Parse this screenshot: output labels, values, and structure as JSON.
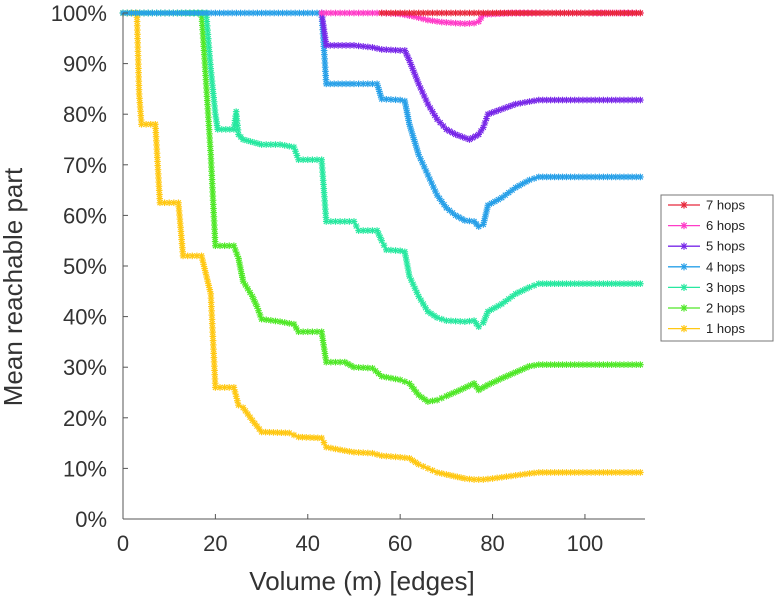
{
  "chart_data": {
    "type": "line",
    "title": "",
    "xlabel": "Volume (m) [edges]",
    "ylabel": "Mean reachable part",
    "xlim": [
      0,
      113
    ],
    "ylim": [
      0,
      100
    ],
    "xticks": [
      0,
      20,
      40,
      60,
      80,
      100
    ],
    "yticks": [
      0,
      10,
      20,
      30,
      40,
      50,
      60,
      70,
      80,
      90,
      100
    ],
    "ytick_labels": [
      "0%",
      "10%",
      "20%",
      "30%",
      "40%",
      "50%",
      "60%",
      "70%",
      "80%",
      "90%",
      "100%"
    ],
    "grid": false,
    "legend": "right",
    "series": [
      {
        "name": "7 hops",
        "color": "#e8283c",
        "points": [
          [
            56,
            100
          ],
          [
            60,
            100
          ],
          [
            64,
            100
          ],
          [
            68,
            100
          ],
          [
            72,
            100
          ],
          [
            76,
            100
          ],
          [
            80,
            100
          ],
          [
            86,
            100
          ],
          [
            92,
            100
          ],
          [
            100,
            100
          ],
          [
            106,
            100
          ],
          [
            112,
            100
          ]
        ]
      },
      {
        "name": "6 hops",
        "color": "#ff3cc8",
        "points": [
          [
            43,
            100
          ],
          [
            48,
            100
          ],
          [
            52,
            100
          ],
          [
            56,
            100
          ],
          [
            60,
            99.8
          ],
          [
            63,
            99.3
          ],
          [
            66,
            98.6
          ],
          [
            69,
            98.2
          ],
          [
            72,
            98
          ],
          [
            74,
            97.9
          ],
          [
            76,
            98
          ],
          [
            77,
            98.3
          ],
          [
            78,
            99.7
          ],
          [
            84,
            100
          ],
          [
            92,
            100
          ],
          [
            100,
            100
          ],
          [
            112,
            100
          ]
        ]
      },
      {
        "name": "5 hops",
        "color": "#7828e8",
        "points": [
          [
            43,
            100
          ],
          [
            44,
            93.6
          ],
          [
            50,
            93.6
          ],
          [
            54,
            93.2
          ],
          [
            56,
            92.8
          ],
          [
            60,
            92.6
          ],
          [
            61,
            92.6
          ],
          [
            62,
            90.6
          ],
          [
            64,
            86
          ],
          [
            66,
            82
          ],
          [
            68,
            79
          ],
          [
            70,
            77
          ],
          [
            72,
            76
          ],
          [
            75,
            75
          ],
          [
            77,
            76
          ],
          [
            78,
            77.4
          ],
          [
            79,
            80
          ],
          [
            82,
            81
          ],
          [
            85,
            82
          ],
          [
            88,
            82.5
          ],
          [
            90,
            82.8
          ],
          [
            96,
            82.8
          ],
          [
            104,
            82.8
          ],
          [
            112,
            82.8
          ]
        ]
      },
      {
        "name": "4 hops",
        "color": "#28a0e8",
        "points": [
          [
            0,
            100
          ],
          [
            10,
            100
          ],
          [
            20,
            100
          ],
          [
            30,
            100
          ],
          [
            40,
            100
          ],
          [
            43,
            100
          ],
          [
            44,
            86
          ],
          [
            50,
            86
          ],
          [
            54,
            86
          ],
          [
            55,
            86
          ],
          [
            56,
            83
          ],
          [
            60,
            82.8
          ],
          [
            61,
            82.6
          ],
          [
            62,
            78
          ],
          [
            64,
            72
          ],
          [
            66,
            68
          ],
          [
            68,
            64
          ],
          [
            70,
            61.5
          ],
          [
            72,
            60
          ],
          [
            74,
            59
          ],
          [
            76,
            58.8
          ],
          [
            77,
            57.8
          ],
          [
            78,
            58.2
          ],
          [
            79,
            62
          ],
          [
            82,
            63.5
          ],
          [
            85,
            65.5
          ],
          [
            88,
            67
          ],
          [
            90,
            67.6
          ],
          [
            96,
            67.6
          ],
          [
            104,
            67.6
          ],
          [
            112,
            67.6
          ]
        ]
      },
      {
        "name": "3 hops",
        "color": "#28e8a0",
        "points": [
          [
            0,
            100
          ],
          [
            10,
            100
          ],
          [
            18,
            100
          ],
          [
            19,
            89
          ],
          [
            20,
            80
          ],
          [
            20.5,
            77
          ],
          [
            24,
            77
          ],
          [
            24.5,
            80.5
          ],
          [
            25,
            76
          ],
          [
            26,
            75
          ],
          [
            30,
            74
          ],
          [
            34,
            74
          ],
          [
            37,
            73.5
          ],
          [
            38,
            71
          ],
          [
            43,
            71
          ],
          [
            44,
            58.8
          ],
          [
            48,
            58.8
          ],
          [
            50,
            58.8
          ],
          [
            51,
            57
          ],
          [
            55,
            57
          ],
          [
            56,
            55
          ],
          [
            57,
            53.2
          ],
          [
            60,
            53
          ],
          [
            61,
            52.8
          ],
          [
            62,
            48
          ],
          [
            64,
            44
          ],
          [
            66,
            41
          ],
          [
            68,
            39.8
          ],
          [
            70,
            39.2
          ],
          [
            74,
            39
          ],
          [
            76,
            39.2
          ],
          [
            77,
            38
          ],
          [
            78,
            38.8
          ],
          [
            79,
            41
          ],
          [
            82,
            42.5
          ],
          [
            85,
            44.5
          ],
          [
            88,
            45.8
          ],
          [
            90,
            46.5
          ],
          [
            96,
            46.5
          ],
          [
            104,
            46.5
          ],
          [
            112,
            46.5
          ]
        ]
      },
      {
        "name": "2 hops",
        "color": "#50e828",
        "points": [
          [
            0,
            100
          ],
          [
            10,
            100
          ],
          [
            17,
            100
          ],
          [
            19,
            72
          ],
          [
            20,
            54
          ],
          [
            24,
            54
          ],
          [
            25,
            51.5
          ],
          [
            26,
            47
          ],
          [
            28,
            44
          ],
          [
            29,
            42
          ],
          [
            30,
            39.5
          ],
          [
            34,
            39
          ],
          [
            37,
            38.5
          ],
          [
            38,
            37
          ],
          [
            43,
            37
          ],
          [
            44,
            31
          ],
          [
            48,
            31
          ],
          [
            50,
            30
          ],
          [
            54,
            29.8
          ],
          [
            56,
            28.2
          ],
          [
            60,
            27.5
          ],
          [
            62,
            26.8
          ],
          [
            64,
            24.5
          ],
          [
            66,
            23.2
          ],
          [
            68,
            23.5
          ],
          [
            70,
            24.3
          ],
          [
            73,
            25.5
          ],
          [
            76,
            26.8
          ],
          [
            77,
            25.5
          ],
          [
            79,
            26.5
          ],
          [
            82,
            27.8
          ],
          [
            85,
            29
          ],
          [
            88,
            30.2
          ],
          [
            90,
            30.5
          ],
          [
            96,
            30.5
          ],
          [
            104,
            30.5
          ],
          [
            112,
            30.5
          ]
        ]
      },
      {
        "name": "1 hops",
        "color": "#ffc814",
        "points": [
          [
            0,
            100
          ],
          [
            3,
            100
          ],
          [
            3.5,
            84
          ],
          [
            4,
            78
          ],
          [
            7,
            78
          ],
          [
            8,
            62.5
          ],
          [
            11,
            62.5
          ],
          [
            12,
            62.5
          ],
          [
            13,
            52
          ],
          [
            17,
            52
          ],
          [
            19,
            44.5
          ],
          [
            20,
            26
          ],
          [
            24,
            26
          ],
          [
            25,
            22.5
          ],
          [
            26,
            22
          ],
          [
            28,
            19.5
          ],
          [
            30,
            17.2
          ],
          [
            36,
            17
          ],
          [
            38,
            16.2
          ],
          [
            43,
            16
          ],
          [
            44,
            14.2
          ],
          [
            48,
            13.5
          ],
          [
            50,
            13.2
          ],
          [
            54,
            13
          ],
          [
            56,
            12.5
          ],
          [
            60,
            12.2
          ],
          [
            62,
            12
          ],
          [
            64,
            10.8
          ],
          [
            66,
            10
          ],
          [
            68,
            9.2
          ],
          [
            70,
            8.8
          ],
          [
            74,
            8
          ],
          [
            76,
            7.8
          ],
          [
            78,
            7.8
          ],
          [
            80,
            8
          ],
          [
            84,
            8.5
          ],
          [
            88,
            9
          ],
          [
            90,
            9.2
          ],
          [
            96,
            9.2
          ],
          [
            104,
            9.2
          ],
          [
            112,
            9.2
          ]
        ]
      }
    ]
  }
}
